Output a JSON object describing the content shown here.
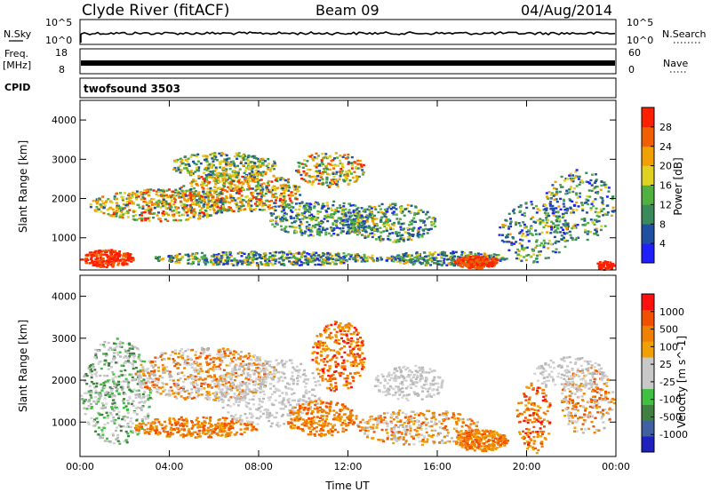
{
  "header": {
    "station": "Clyde River (fitACF)",
    "beam": "Beam 09",
    "date": "04/Aug/2014"
  },
  "strips": {
    "nsky": {
      "label": "N.Sky",
      "ticks": [
        "10^5",
        "10^0"
      ]
    },
    "nsearch": {
      "label": "N.Search",
      "ticks": [
        "10^5",
        "10^0"
      ]
    },
    "freq": {
      "label": "Freq.",
      "unit": "[MHz]",
      "ticks": [
        "18",
        "8"
      ]
    },
    "nave": {
      "label": "Nave",
      "ticks": [
        "60",
        "0"
      ]
    },
    "cpid": {
      "label": "CPID",
      "value": "twofsound 3503"
    }
  },
  "colors": {
    "power": [
      "#2020ff",
      "#2050a0",
      "#3a8a5a",
      "#50b040",
      "#e0d020",
      "#f0a000",
      "#f06000",
      "#ff2000"
    ],
    "velocity": [
      "#ff1010",
      "#f05000",
      "#f08000",
      "#f0a000",
      "#c8c8c8",
      "#c8c8c8",
      "#40c040",
      "#408040",
      "#4060a0",
      "#2020c0"
    ]
  },
  "chart_data": [
    {
      "type": "heatmap",
      "name": "power",
      "xlabel": "",
      "ylabel": "Slant Range [km]",
      "x_ticks": [
        "00:00",
        "04:00",
        "08:00",
        "12:00",
        "16:00",
        "20:00",
        "00:00"
      ],
      "y_ticks": [
        1000,
        2000,
        3000,
        4000
      ],
      "ylim": [
        180,
        4500
      ],
      "colorbar": {
        "label": "Power [dB]",
        "ticks": [
          4,
          8,
          12,
          16,
          20,
          24,
          28
        ]
      }
    },
    {
      "type": "heatmap",
      "name": "velocity",
      "xlabel": "Time UT",
      "ylabel": "Slant Range [km]",
      "x_ticks": [
        "00:00",
        "04:00",
        "08:00",
        "12:00",
        "16:00",
        "20:00",
        "00:00"
      ],
      "y_ticks": [
        1000,
        2000,
        3000,
        4000
      ],
      "ylim": [
        180,
        4500
      ],
      "colorbar": {
        "label": "Velocity [m s^-1]",
        "ticks": [
          1000,
          500,
          100,
          25,
          -25,
          -100,
          -500,
          -1000
        ]
      }
    }
  ]
}
